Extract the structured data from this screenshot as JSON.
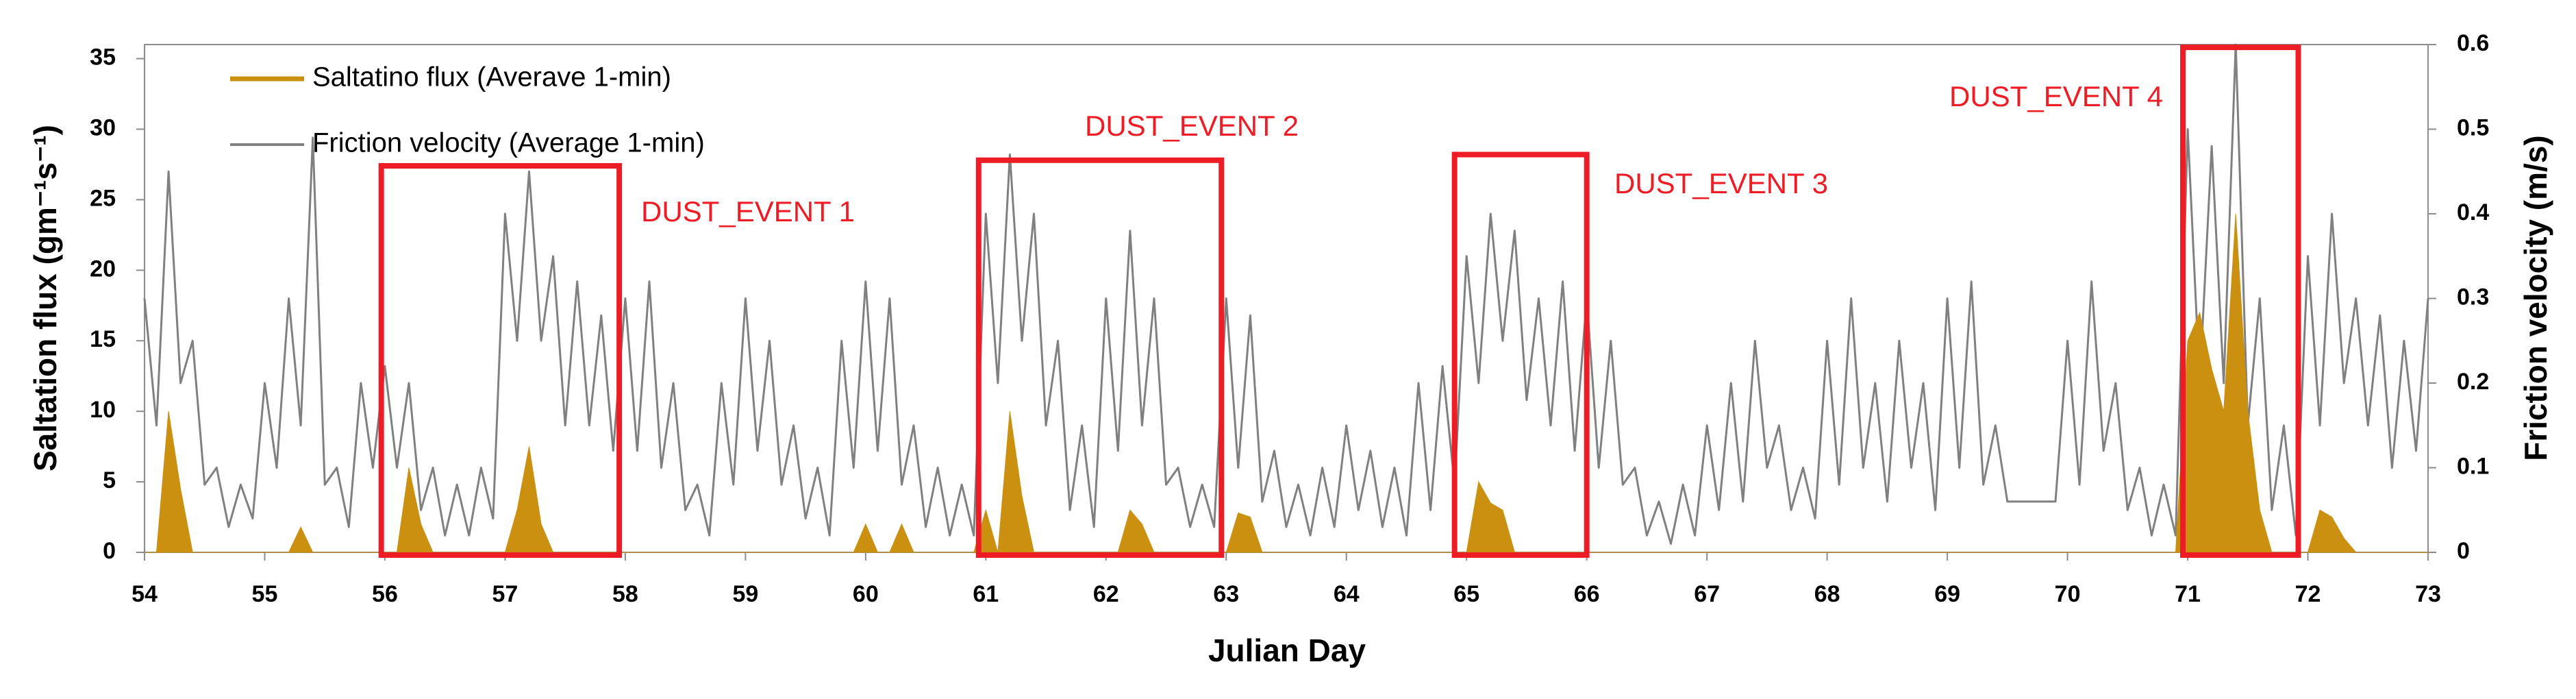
{
  "chart_data": {
    "type": "line",
    "xlabel": "Julian Day",
    "ylabel": "Saltation flux (gm⁻¹s⁻¹)",
    "y2label": "Friction velocity  (m/s)",
    "xlim": [
      54,
      73
    ],
    "xticks": [
      54,
      55,
      56,
      57,
      58,
      59,
      60,
      61,
      62,
      63,
      64,
      65,
      66,
      67,
      68,
      69,
      70,
      71,
      72,
      73
    ],
    "ylim": [
      0,
      36
    ],
    "yticks": [
      0,
      5,
      10,
      15,
      20,
      25,
      30,
      35
    ],
    "y2lim": [
      0,
      0.6
    ],
    "y2ticks": [
      0,
      0.1,
      0.2,
      0.3,
      0.4,
      0.5,
      0.6
    ],
    "x": [
      54,
      54.1,
      54.2,
      54.3,
      54.4,
      54.5,
      54.6,
      54.7,
      54.8,
      54.9,
      55,
      55.1,
      55.2,
      55.3,
      55.4,
      55.5,
      55.6,
      55.7,
      55.8,
      55.9,
      56,
      56.1,
      56.2,
      56.3,
      56.4,
      56.5,
      56.6,
      56.7,
      56.8,
      56.9,
      57,
      57.1,
      57.2,
      57.3,
      57.4,
      57.5,
      57.6,
      57.7,
      57.8,
      57.9,
      58,
      58.1,
      58.2,
      58.3,
      58.4,
      58.5,
      58.6,
      58.7,
      58.8,
      58.9,
      59,
      59.1,
      59.2,
      59.3,
      59.4,
      59.5,
      59.6,
      59.7,
      59.8,
      59.9,
      60,
      60.1,
      60.2,
      60.3,
      60.4,
      60.5,
      60.6,
      60.7,
      60.8,
      60.9,
      61,
      61.1,
      61.2,
      61.3,
      61.4,
      61.5,
      61.6,
      61.7,
      61.8,
      61.9,
      62,
      62.1,
      62.2,
      62.3,
      62.4,
      62.5,
      62.6,
      62.7,
      62.8,
      62.9,
      63,
      63.1,
      63.2,
      63.3,
      63.4,
      63.5,
      63.6,
      63.7,
      63.8,
      63.9,
      64,
      64.1,
      64.2,
      64.3,
      64.4,
      64.5,
      64.6,
      64.7,
      64.8,
      64.9,
      65,
      65.1,
      65.2,
      65.3,
      65.4,
      65.5,
      65.6,
      65.7,
      65.8,
      65.9,
      66,
      66.1,
      66.2,
      66.3,
      66.4,
      66.5,
      66.6,
      66.7,
      66.8,
      66.9,
      67,
      67.1,
      67.2,
      67.3,
      67.4,
      67.5,
      67.6,
      67.7,
      67.8,
      67.9,
      68,
      68.1,
      68.2,
      68.3,
      68.4,
      68.5,
      68.6,
      68.7,
      68.8,
      68.9,
      69,
      69.1,
      69.2,
      69.3,
      69.4,
      69.5,
      69.6,
      69.7,
      69.8,
      69.9,
      70,
      70.1,
      70.2,
      70.3,
      70.4,
      70.5,
      70.6,
      70.7,
      70.8,
      70.9,
      71,
      71.1,
      71.2,
      71.3,
      71.4,
      71.5,
      71.6,
      71.7,
      71.8,
      71.9,
      72,
      72.1,
      72.2,
      72.3,
      72.4,
      72.5,
      72.6,
      72.7,
      72.8,
      72.9,
      73
    ],
    "series": [
      {
        "name": "Saltatino flux (Averave 1-min)",
        "color": "#cc9010",
        "values": [
          0,
          0,
          10,
          4.5,
          0,
          0,
          0,
          0,
          0,
          0,
          0,
          0,
          0,
          1.8,
          0,
          0,
          0,
          0,
          0,
          0,
          0,
          0,
          6,
          2,
          0,
          0,
          0,
          0,
          0,
          0,
          0,
          3,
          7.5,
          2,
          0,
          0,
          0,
          0,
          0,
          0,
          0,
          0,
          0,
          0,
          0,
          0,
          0,
          0,
          0,
          0,
          0,
          0,
          0,
          0,
          0,
          0,
          0,
          0,
          0,
          0,
          2,
          0,
          0,
          2,
          0,
          0,
          0,
          0,
          0,
          0,
          3,
          0,
          10,
          4,
          0,
          0,
          0,
          0,
          0,
          0,
          0,
          0,
          3,
          2,
          0,
          0,
          0,
          0,
          0,
          0,
          0,
          2.8,
          2.5,
          0,
          0,
          0,
          0,
          0,
          0,
          0,
          0,
          0,
          0,
          0,
          0,
          0,
          0,
          0,
          0,
          0,
          0,
          5,
          3.5,
          3,
          0,
          0,
          0,
          0,
          0,
          0,
          0,
          0,
          0,
          0,
          0,
          0,
          0,
          0,
          0,
          0,
          0,
          0,
          0,
          0,
          0,
          0,
          0,
          0,
          0,
          0,
          0,
          0,
          0,
          0,
          0,
          0,
          0,
          0,
          0,
          0,
          0,
          0,
          0,
          0,
          0,
          0,
          0,
          0,
          0,
          0,
          0,
          0,
          0,
          0,
          0,
          0,
          0,
          0,
          0,
          0,
          15,
          17,
          13,
          10,
          24,
          10,
          3,
          0,
          0,
          0,
          0,
          3,
          2.5,
          1,
          0,
          0,
          0,
          0,
          0,
          0,
          0
        ]
      },
      {
        "name": "Friction velocity (Average 1-min)",
        "color": "#808080",
        "axis": "y2",
        "values": [
          0.3,
          0.15,
          0.45,
          0.2,
          0.25,
          0.08,
          0.1,
          0.03,
          0.08,
          0.04,
          0.2,
          0.1,
          0.3,
          0.15,
          0.49,
          0.08,
          0.1,
          0.03,
          0.2,
          0.1,
          0.22,
          0.1,
          0.2,
          0.05,
          0.1,
          0.02,
          0.08,
          0.02,
          0.1,
          0.04,
          0.4,
          0.25,
          0.45,
          0.25,
          0.35,
          0.15,
          0.32,
          0.15,
          0.28,
          0.12,
          0.3,
          0.12,
          0.32,
          0.1,
          0.2,
          0.05,
          0.08,
          0.02,
          0.2,
          0.08,
          0.3,
          0.12,
          0.25,
          0.08,
          0.15,
          0.04,
          0.1,
          0.02,
          0.25,
          0.1,
          0.32,
          0.12,
          0.3,
          0.08,
          0.15,
          0.03,
          0.1,
          0.02,
          0.08,
          0.02,
          0.4,
          0.2,
          0.47,
          0.25,
          0.4,
          0.15,
          0.25,
          0.05,
          0.15,
          0.03,
          0.3,
          0.12,
          0.38,
          0.15,
          0.3,
          0.08,
          0.1,
          0.03,
          0.08,
          0.03,
          0.3,
          0.1,
          0.28,
          0.06,
          0.12,
          0.03,
          0.08,
          0.02,
          0.1,
          0.03,
          0.15,
          0.05,
          0.12,
          0.03,
          0.1,
          0.02,
          0.2,
          0.05,
          0.22,
          0.08,
          0.35,
          0.2,
          0.4,
          0.25,
          0.38,
          0.18,
          0.3,
          0.15,
          0.32,
          0.12,
          0.3,
          0.1,
          0.25,
          0.08,
          0.1,
          0.02,
          0.06,
          0.01,
          0.08,
          0.02,
          0.15,
          0.05,
          0.2,
          0.06,
          0.25,
          0.1,
          0.15,
          0.05,
          0.1,
          0.04,
          0.25,
          0.08,
          0.3,
          0.1,
          0.2,
          0.06,
          0.25,
          0.1,
          0.2,
          0.05,
          0.3,
          0.1,
          0.32,
          0.08,
          0.15,
          0.06,
          0.06,
          0.06,
          0.06,
          0.06,
          0.25,
          0.08,
          0.32,
          0.12,
          0.2,
          0.05,
          0.1,
          0.02,
          0.08,
          0.02,
          0.5,
          0.2,
          0.48,
          0.2,
          0.6,
          0.15,
          0.3,
          0.05,
          0.15,
          0.02,
          0.35,
          0.15,
          0.4,
          0.2,
          0.3,
          0.15,
          0.28,
          0.1,
          0.25,
          0.12,
          0.3
        ]
      }
    ],
    "annotations": [
      {
        "text": "DUST_EVENT 1",
        "x": [
          55.97,
          57.95
        ],
        "y": [
          0,
          27.4
        ]
      },
      {
        "text": "DUST_EVENT 2",
        "x": [
          60.94,
          62.96
        ],
        "y": [
          0,
          27.8
        ]
      },
      {
        "text": "DUST_EVENT 3",
        "x": [
          64.9,
          66.0
        ],
        "y": [
          0,
          28.2
        ]
      },
      {
        "text": "DUST_EVENT 4",
        "x": [
          70.96,
          71.92
        ],
        "y": [
          0,
          35.8
        ]
      }
    ],
    "annotation_color": "#ee1c24"
  }
}
